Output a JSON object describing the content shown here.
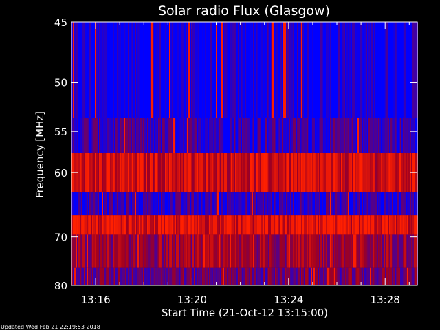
{
  "chart_data": {
    "type": "heatmap",
    "title": "Solar radio Flux (Glasgow)",
    "xlabel": "Start Time (21-Oct-12 13:15:00)",
    "ylabel": "Frequency [MHz]",
    "x_start": "13:15:00",
    "x_end": "13:29:20",
    "xticks": [
      "13:16",
      "13:20",
      "13:24",
      "13:28"
    ],
    "ylim": [
      45,
      80
    ],
    "yticks": [
      45,
      50,
      55,
      60,
      70,
      80
    ],
    "y_scale": "reciprocal",
    "bands": [
      {
        "f_from": 45.0,
        "f_to": 53.5,
        "level": 0.05
      },
      {
        "f_from": 53.5,
        "f_to": 57.5,
        "level": 0.22
      },
      {
        "f_from": 57.5,
        "f_to": 62.8,
        "level": 0.78
      },
      {
        "f_from": 62.8,
        "f_to": 66.3,
        "level": 0.18
      },
      {
        "f_from": 66.3,
        "f_to": 69.6,
        "level": 0.82
      },
      {
        "f_from": 69.6,
        "f_to": 76.1,
        "level": 0.55
      },
      {
        "f_from": 76.1,
        "f_to": 80.0,
        "level": 0.4
      }
    ],
    "colors": {
      "low": "#0000ff",
      "mid": "#a00020",
      "high": "#ff2000"
    }
  },
  "footer": {
    "updated": "Updated Wed Feb 21 22:19:53 2018"
  }
}
